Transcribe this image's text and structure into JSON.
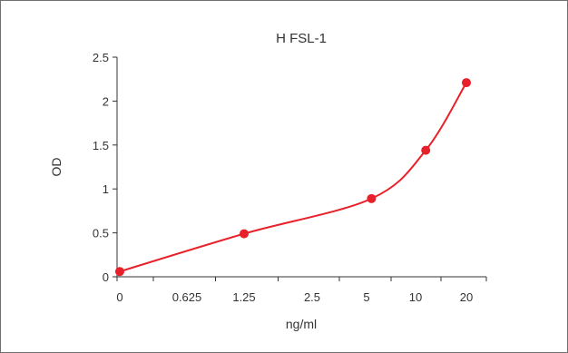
{
  "chart_data": {
    "type": "line",
    "title": "H FSL-1",
    "xlabel": "ng/ml",
    "ylabel": "OD",
    "categories": [
      "0",
      "0.625",
      "1.25",
      "2.5",
      "5",
      "10",
      "20"
    ],
    "yticks": [
      "0",
      "0.5",
      "1",
      "1.5",
      "2",
      "2.5"
    ],
    "ylim": [
      0,
      2.5
    ],
    "grid": false,
    "x_scale": "categorical (unequal spacing)",
    "series": [
      {
        "color": "#e8202a",
        "points": [
          {
            "x": 0,
            "y": 0.06
          },
          {
            "x": 1.25,
            "y": 0.49
          },
          {
            "x": 5.5,
            "y": 0.89
          },
          {
            "x": 12,
            "y": 1.44
          },
          {
            "x": 20,
            "y": 2.21
          }
        ]
      }
    ]
  }
}
